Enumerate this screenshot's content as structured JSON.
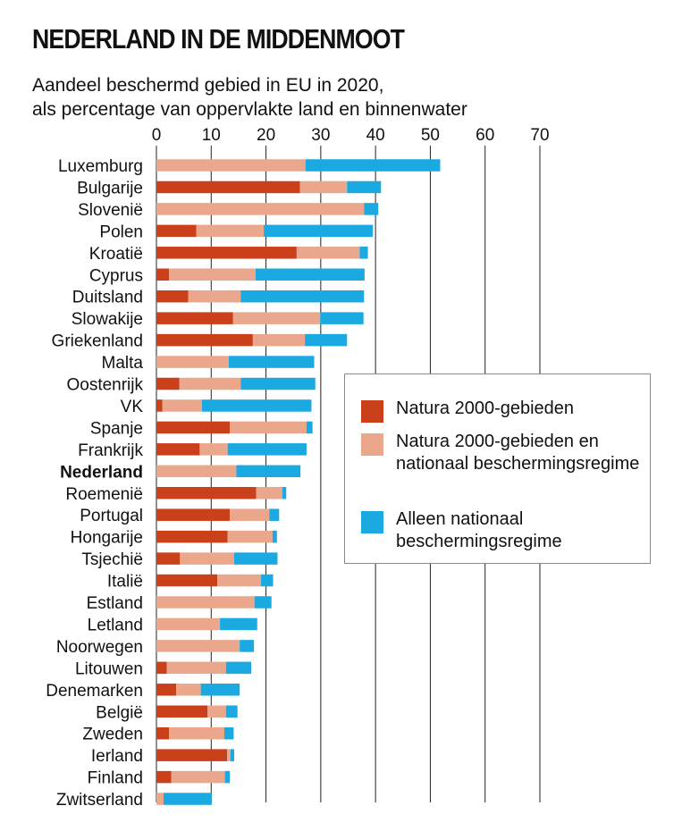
{
  "title": "NEDERLAND IN DE MIDDENMOOT",
  "subtitle_line1": "Aandeel beschermd gebied in EU in 2020,",
  "subtitle_line2": "als percentage van oppervlakte land en binnenwater",
  "colors": {
    "natura2000": "#c9401a",
    "natura2000_national": "#eaa78c",
    "national_only": "#1aa9e0",
    "grid": "#222222"
  },
  "legend": {
    "items": [
      {
        "label": "Natura 2000-gebieden",
        "color": "#c9401a"
      },
      {
        "label": "Natura 2000-gebieden en nationaal beschermingsregime",
        "color": "#eaa78c"
      },
      {
        "label": "Alleen nationaal beschermingsregime",
        "color": "#1aa9e0"
      }
    ]
  },
  "chart_data": {
    "type": "bar",
    "orientation": "horizontal",
    "stacked": true,
    "xlim": [
      0,
      70
    ],
    "xticks": [
      "0",
      "10",
      "20",
      "30",
      "40",
      "50",
      "60",
      "70"
    ],
    "grid": true,
    "highlight": "Nederland",
    "categories": [
      "Luxemburg",
      "Bulgarije",
      "Slovenië",
      "Polen",
      "Kroatië",
      "Cyprus",
      "Duitsland",
      "Slowakije",
      "Griekenland",
      "Malta",
      "Oostenrijk",
      "VK",
      "Spanje",
      "Frankrijk",
      "Nederland",
      "Roemenië",
      "Portugal",
      "Hongarije",
      "Tsjechië",
      "Italië",
      "Estland",
      "Letland",
      "Noorwegen",
      "Litouwen",
      "Denemarken",
      "België",
      "Zweden",
      "Ierland",
      "Finland",
      "Zwitserland"
    ],
    "series": [
      {
        "name": "Natura 2000-gebieden",
        "values": [
          0,
          26.2,
          0,
          7.3,
          25.6,
          2.3,
          5.8,
          14,
          17.6,
          0,
          4.2,
          1.1,
          13.4,
          7.9,
          0,
          18.2,
          13.4,
          13,
          4.3,
          11.1,
          0,
          0,
          0,
          1.9,
          3.6,
          9.3,
          2.3,
          12.9,
          2.7,
          0
        ]
      },
      {
        "name": "Natura 2000-gebieden en nationaal beschermingsregime",
        "values": [
          27.2,
          8.6,
          37.9,
          12.3,
          11.5,
          15.8,
          9.6,
          15.9,
          9.5,
          13.2,
          11.2,
          7.2,
          14,
          5.1,
          14.6,
          4.8,
          7.2,
          8.2,
          9.9,
          8,
          17.9,
          11.6,
          15.2,
          10.8,
          4.5,
          3.4,
          10.1,
          0.6,
          9.8,
          1.3
        ]
      },
      {
        "name": "Alleen nationaal beschermingsregime",
        "values": [
          24.6,
          6.2,
          2.6,
          19.9,
          1.5,
          19.9,
          22.5,
          7.9,
          7.7,
          15.6,
          13.6,
          20,
          1.1,
          14.4,
          11.7,
          0.7,
          1.8,
          0.8,
          7.9,
          2.2,
          3.1,
          6.8,
          2.6,
          4.6,
          7.1,
          2.1,
          1.7,
          0.7,
          0.9,
          8.8
        ]
      }
    ]
  }
}
